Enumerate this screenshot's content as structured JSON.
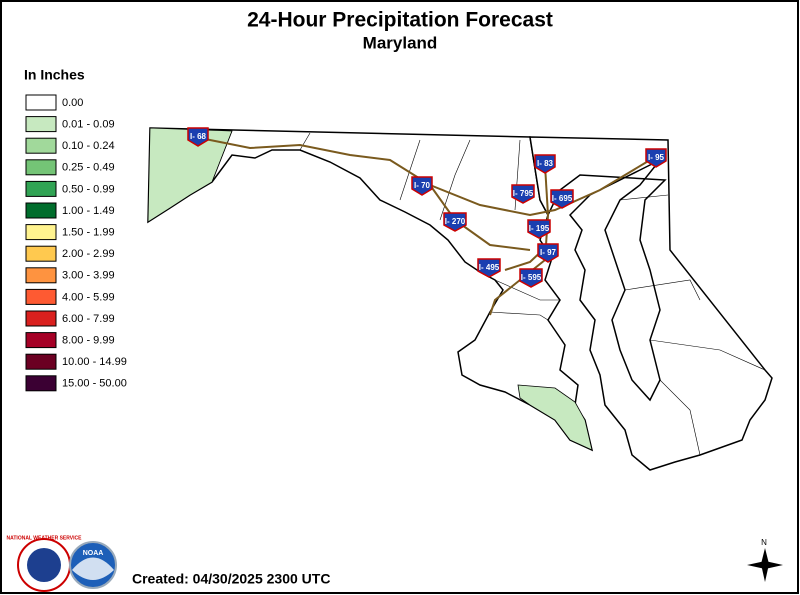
{
  "header": {
    "title": "24-Hour Precipitation Forecast",
    "subtitle": "Maryland"
  },
  "legend": {
    "title": "In Inches",
    "items": [
      {
        "label": "0.00",
        "color": "#ffffff"
      },
      {
        "label": "0.01 - 0.09",
        "color": "#c7e9c0"
      },
      {
        "label": "0.10 - 0.24",
        "color": "#a1d99b"
      },
      {
        "label": "0.25 - 0.49",
        "color": "#74c476"
      },
      {
        "label": "0.50 - 0.99",
        "color": "#31a354"
      },
      {
        "label": "1.00 - 1.49",
        "color": "#006d2c"
      },
      {
        "label": "1.50 - 1.99",
        "color": "#fff38f"
      },
      {
        "label": "2.00 - 2.99",
        "color": "#ffc94f"
      },
      {
        "label": "3.00 - 3.99",
        "color": "#fe9340"
      },
      {
        "label": "4.00 - 5.99",
        "color": "#fe5a32"
      },
      {
        "label": "6.00 - 7.99",
        "color": "#d9201e"
      },
      {
        "label": "8.00 - 9.99",
        "color": "#a50026"
      },
      {
        "label": "10.00 - 14.99",
        "color": "#6b0022"
      },
      {
        "label": "15.00 - 50.00",
        "color": "#3b0033"
      }
    ]
  },
  "highways": [
    "I- 68",
    "I- 70",
    "I- 270",
    "I- 83",
    "I- 795",
    "I- 695",
    "I- 195",
    "I- 97",
    "I- 495",
    "I- 595",
    "I- 95"
  ],
  "logos": {
    "nws": "NATIONAL WEATHER SERVICE",
    "noaa": "NOAA"
  },
  "footer": {
    "created": "Created: 04/30/2025 2300 UTC"
  },
  "compass": "N"
}
